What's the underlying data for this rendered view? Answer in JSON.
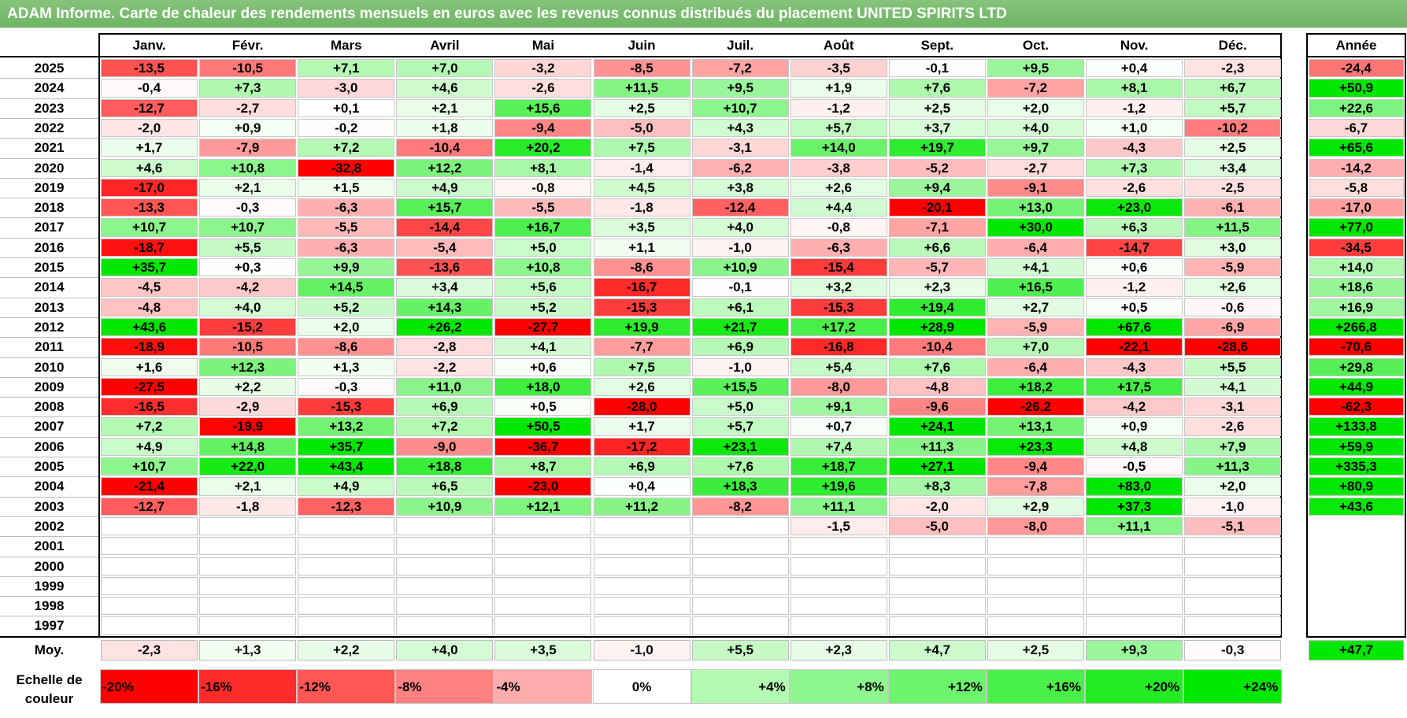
{
  "title": "ADAM Informe. Carte de chaleur des rendements mensuels en euros avec les revenus connus distribués du placement UNITED SPIRITS LTD",
  "months": [
    "Janv.",
    "Févr.",
    "Mars",
    "Avril",
    "Mai",
    "Juin",
    "Juil.",
    "Août",
    "Sept.",
    "Oct.",
    "Nov.",
    "Déc."
  ],
  "year_header": "Année",
  "avg_label": "Moy.",
  "scale_label": "Echelle de couleur",
  "colors": {
    "negative_max": "#ff0000",
    "positive_max": "#00e000",
    "neutral": "#ffffff",
    "title_bar": "#78bb6e"
  },
  "chart_data": {
    "type": "heatmap",
    "title": "ADAM Informe. Carte de chaleur des rendements mensuels en euros avec les revenus connus distribués du placement UNITED SPIRITS LTD",
    "columns": [
      "Janv.",
      "Févr.",
      "Mars",
      "Avril",
      "Mai",
      "Juin",
      "Juil.",
      "Août",
      "Sept.",
      "Oct.",
      "Nov.",
      "Déc."
    ],
    "rows": [
      {
        "year": "2025",
        "values": [
          "-13,5",
          "-10,5",
          "+7,1",
          "+7,0",
          "-3,2",
          "-8,5",
          "-7,2",
          "-3,5",
          "-0,1",
          "+9,5",
          "+0,4",
          "-2,3"
        ],
        "annual": "-24,4"
      },
      {
        "year": "2024",
        "values": [
          "-0,4",
          "+7,3",
          "-3,0",
          "+4,6",
          "-2,6",
          "+11,5",
          "+9,5",
          "+1,9",
          "+7,6",
          "-7,2",
          "+8,1",
          "+6,7"
        ],
        "annual": "+50,9"
      },
      {
        "year": "2023",
        "values": [
          "-12,7",
          "-2,7",
          "+0,1",
          "+2,1",
          "+15,6",
          "+2,5",
          "+10,7",
          "-1,2",
          "+2,5",
          "+2,0",
          "-1,2",
          "+5,7"
        ],
        "annual": "+22,6"
      },
      {
        "year": "2022",
        "values": [
          "-2,0",
          "+0,9",
          "-0,2",
          "+1,8",
          "-9,4",
          "-5,0",
          "+4,3",
          "+5,7",
          "+3,7",
          "+4,0",
          "+1,0",
          "-10,2"
        ],
        "annual": "-6,7"
      },
      {
        "year": "2021",
        "values": [
          "+1,7",
          "-7,9",
          "+7,2",
          "-10,4",
          "+20,2",
          "+7,5",
          "-3,1",
          "+14,0",
          "+19,7",
          "+9,7",
          "-4,3",
          "+2,5"
        ],
        "annual": "+65,6"
      },
      {
        "year": "2020",
        "values": [
          "+4,6",
          "+10,8",
          "-32,8",
          "+12,2",
          "+8,1",
          "-1,4",
          "-6,2",
          "-3,8",
          "-5,2",
          "-2,7",
          "+7,3",
          "+3,4"
        ],
        "annual": "-14,2"
      },
      {
        "year": "2019",
        "values": [
          "-17,0",
          "+2,1",
          "+1,5",
          "+4,9",
          "-0,8",
          "+4,5",
          "+3,8",
          "+2,6",
          "+9,4",
          "-9,1",
          "-2,6",
          "-2,5"
        ],
        "annual": "-5,8"
      },
      {
        "year": "2018",
        "values": [
          "-13,3",
          "-0,3",
          "-6,3",
          "+15,7",
          "-5,5",
          "-1,8",
          "-12,4",
          "+4,4",
          "-20,1",
          "+13,0",
          "+23,0",
          "-6,1"
        ],
        "annual": "-17,0"
      },
      {
        "year": "2017",
        "values": [
          "+10,7",
          "+10,7",
          "-5,5",
          "-14,4",
          "+16,7",
          "+3,5",
          "+4,0",
          "-0,8",
          "-7,1",
          "+30,0",
          "+6,3",
          "+11,5"
        ],
        "annual": "+77,0"
      },
      {
        "year": "2016",
        "values": [
          "-18,7",
          "+5,5",
          "-6,3",
          "-5,4",
          "+5,0",
          "+1,1",
          "-1,0",
          "-6,3",
          "+6,6",
          "-6,4",
          "-14,7",
          "+3,0"
        ],
        "annual": "-34,5"
      },
      {
        "year": "2015",
        "values": [
          "+35,7",
          "+0,3",
          "+9,9",
          "-13,6",
          "+10,8",
          "-8,6",
          "+10,9",
          "-15,4",
          "-5,7",
          "+4,1",
          "+0,6",
          "-5,9"
        ],
        "annual": "+14,0"
      },
      {
        "year": "2014",
        "values": [
          "-4,5",
          "-4,2",
          "+14,5",
          "+3,4",
          "+5,6",
          "-16,7",
          "-0,1",
          "+3,2",
          "+2,3",
          "+16,5",
          "-1,2",
          "+2,6"
        ],
        "annual": "+18,6"
      },
      {
        "year": "2013",
        "values": [
          "-4,8",
          "+4,0",
          "+5,2",
          "+14,3",
          "+5,2",
          "-15,3",
          "+6,1",
          "-15,3",
          "+19,4",
          "+2,7",
          "+0,5",
          "-0,6"
        ],
        "annual": "+16,9"
      },
      {
        "year": "2012",
        "values": [
          "+43,6",
          "-15,2",
          "+2,0",
          "+26,2",
          "-27,7",
          "+19,9",
          "+21,7",
          "+17,2",
          "+28,9",
          "-5,9",
          "+67,6",
          "-6,9"
        ],
        "annual": "+266,8"
      },
      {
        "year": "2011",
        "values": [
          "-18,9",
          "-10,5",
          "-8,6",
          "-2,8",
          "+4,1",
          "-7,7",
          "+6,9",
          "-16,8",
          "-10,4",
          "+7,0",
          "-22,1",
          "-28,6"
        ],
        "annual": "-70,6"
      },
      {
        "year": "2010",
        "values": [
          "+1,6",
          "+12,3",
          "+1,3",
          "-2,2",
          "+0,6",
          "+7,5",
          "-1,0",
          "+5,4",
          "+7,6",
          "-6,4",
          "-4,3",
          "+5,5"
        ],
        "annual": "+29,8"
      },
      {
        "year": "2009",
        "values": [
          "-27,5",
          "+2,2",
          "-0,3",
          "+11,0",
          "+18,0",
          "+2,6",
          "+15,5",
          "-8,0",
          "-4,8",
          "+18,2",
          "+17,5",
          "+4,1"
        ],
        "annual": "+44,9"
      },
      {
        "year": "2008",
        "values": [
          "-16,5",
          "-2,9",
          "-15,3",
          "+6,9",
          "+0,5",
          "-28,0",
          "+5,0",
          "+9,1",
          "-9,6",
          "-26,2",
          "-4,2",
          "-3,1"
        ],
        "annual": "-62,3"
      },
      {
        "year": "2007",
        "values": [
          "+7,2",
          "-19,9",
          "+13,2",
          "+7,2",
          "+50,5",
          "+1,7",
          "+5,7",
          "+0,7",
          "+24,1",
          "+13,1",
          "+0,9",
          "-2,6"
        ],
        "annual": "+133,8"
      },
      {
        "year": "2006",
        "values": [
          "+4,9",
          "+14,8",
          "+35,7",
          "-9,0",
          "-36,7",
          "-17,2",
          "+23,1",
          "+7,4",
          "+11,3",
          "+23,3",
          "+4,8",
          "+7,9"
        ],
        "annual": "+59,9"
      },
      {
        "year": "2005",
        "values": [
          "+10,7",
          "+22,0",
          "+43,4",
          "+18,8",
          "+8,7",
          "+6,9",
          "+7,6",
          "+18,7",
          "+27,1",
          "-9,4",
          "-0,5",
          "+11,3"
        ],
        "annual": "+335,3"
      },
      {
        "year": "2004",
        "values": [
          "-21,4",
          "+2,1",
          "+4,9",
          "+6,5",
          "-23,0",
          "+0,4",
          "+18,3",
          "+19,6",
          "+8,3",
          "-7,8",
          "+83,0",
          "+2,0"
        ],
        "annual": "+80,9"
      },
      {
        "year": "2003",
        "values": [
          "-12,7",
          "-1,8",
          "-12,3",
          "+10,9",
          "+12,1",
          "+11,2",
          "-8,2",
          "+11,1",
          "-2,0",
          "+2,9",
          "+37,3",
          "-1,0"
        ],
        "annual": "+43,6"
      },
      {
        "year": "2002",
        "values": [
          "",
          "",
          "",
          "",
          "",
          "",
          "",
          "-1,5",
          "-5,0",
          "-8,0",
          "+11,1",
          "-5,1"
        ],
        "annual": ""
      },
      {
        "year": "2001",
        "values": [
          "",
          "",
          "",
          "",
          "",
          "",
          "",
          "",
          "",
          "",
          "",
          ""
        ],
        "annual": ""
      },
      {
        "year": "2000",
        "values": [
          "",
          "",
          "",
          "",
          "",
          "",
          "",
          "",
          "",
          "",
          "",
          ""
        ],
        "annual": ""
      },
      {
        "year": "1999",
        "values": [
          "",
          "",
          "",
          "",
          "",
          "",
          "",
          "",
          "",
          "",
          "",
          ""
        ],
        "annual": ""
      },
      {
        "year": "1998",
        "values": [
          "",
          "",
          "",
          "",
          "",
          "",
          "",
          "",
          "",
          "",
          "",
          ""
        ],
        "annual": ""
      },
      {
        "year": "1997",
        "values": [
          "",
          "",
          "",
          "",
          "",
          "",
          "",
          "",
          "",
          "",
          "",
          ""
        ],
        "annual": ""
      }
    ],
    "average": {
      "values": [
        "-2,3",
        "+1,3",
        "+2,2",
        "+4,0",
        "+3,5",
        "-1,0",
        "+5,5",
        "+2,3",
        "+4,7",
        "+2,5",
        "+9,3",
        "-0,3"
      ],
      "annual": "+47,7"
    },
    "color_scale": [
      "-20%",
      "-16%",
      "-12%",
      "-8%",
      "-4%",
      "0%",
      "+4%",
      "+8%",
      "+12%",
      "+16%",
      "+20%",
      "+24%"
    ],
    "color_scale_values": [
      -20,
      -16,
      -12,
      -8,
      -4,
      0,
      4,
      8,
      12,
      16,
      20,
      24
    ]
  }
}
